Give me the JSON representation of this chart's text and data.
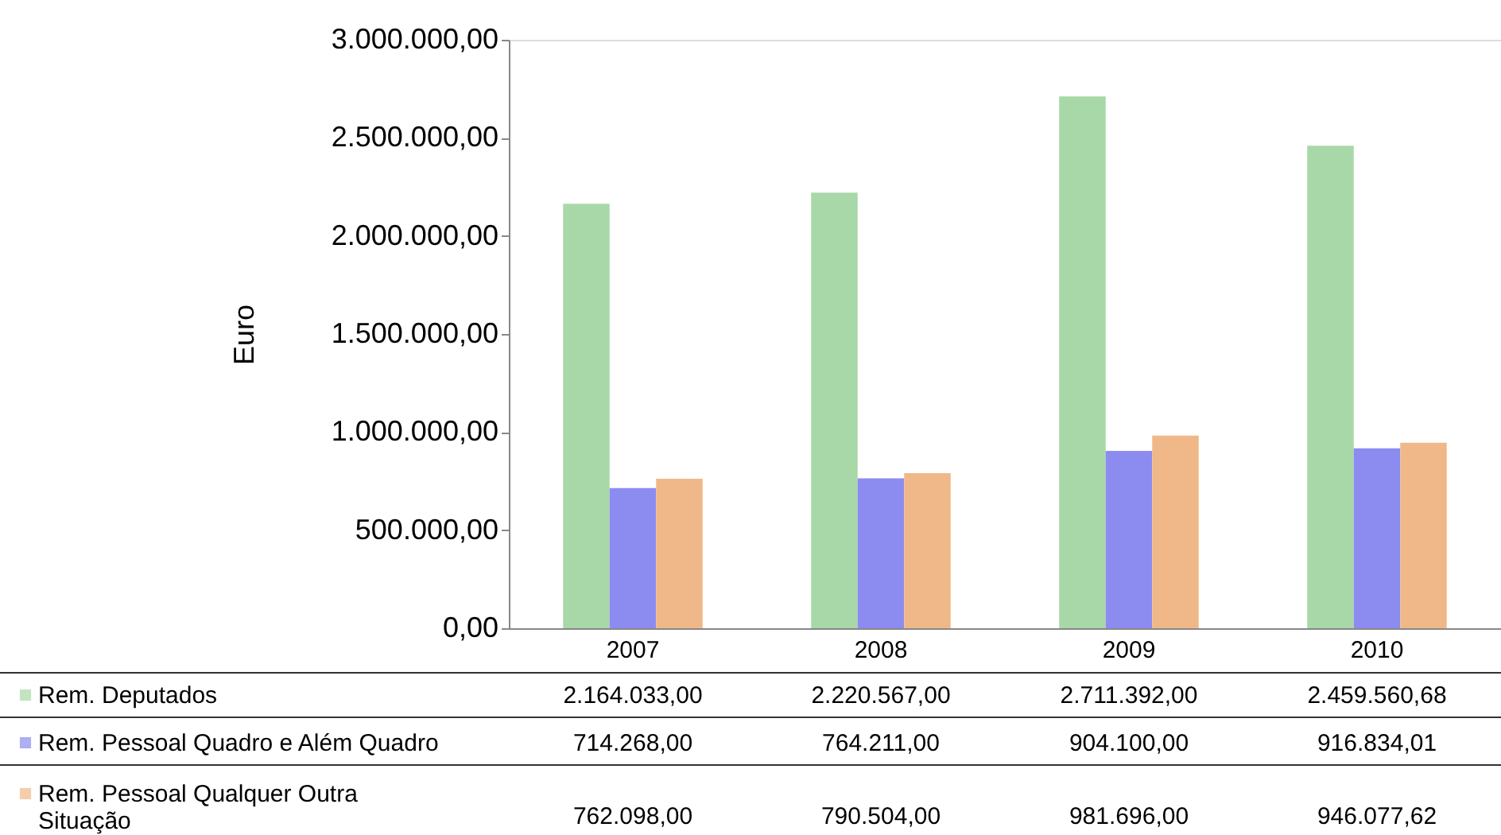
{
  "chart_data": {
    "type": "bar",
    "ylabel": "Euro",
    "categories": [
      "2007",
      "2008",
      "2009",
      "2010"
    ],
    "ylim": [
      0,
      3000000
    ],
    "yticks": [
      {
        "value": 0,
        "label": "0,00"
      },
      {
        "value": 500000,
        "label": "500.000,00"
      },
      {
        "value": 1000000,
        "label": "1.000.000,00"
      },
      {
        "value": 1500000,
        "label": "1.500.000,00"
      },
      {
        "value": 2000000,
        "label": "2.000.000,00"
      },
      {
        "value": 2500000,
        "label": "2.500.000,00"
      },
      {
        "value": 3000000,
        "label": "3.000.000,00"
      }
    ],
    "legend": "bottom",
    "grid": false,
    "series": [
      {
        "name": "Rem. Deputados",
        "color": "#a8d8a8",
        "values": [
          2164033.0,
          2220567.0,
          2711392.0,
          2459560.68
        ],
        "value_labels": [
          "2.164.033,00",
          "2.220.567,00",
          "2.711.392,00",
          "2.459.560,68"
        ]
      },
      {
        "name": "Rem. Pessoal Quadro e Além Quadro",
        "color": "#8c8cf0",
        "values": [
          714268.0,
          764211.0,
          904100.0,
          916834.01
        ],
        "value_labels": [
          "714.268,00",
          "764.211,00",
          "904.100,00",
          "916.834,01"
        ]
      },
      {
        "name": "Rem. Pessoal Qualquer Outra\nSituação",
        "color": "#f0b888",
        "values": [
          762098.0,
          790504.0,
          981696.0,
          946077.62
        ],
        "value_labels": [
          "762.098,00",
          "790.504,00",
          "981.696,00",
          "946.077,62"
        ]
      }
    ]
  }
}
